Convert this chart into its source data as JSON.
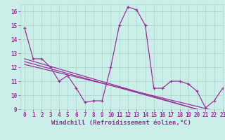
{
  "xlabel": "Windchill (Refroidissement éolien,°C)",
  "bg_color": "#cceee8",
  "grid_color": "#a8d8d0",
  "line_color": "#993399",
  "x_values": [
    0,
    1,
    2,
    3,
    4,
    5,
    6,
    7,
    8,
    9,
    10,
    11,
    12,
    13,
    14,
    15,
    16,
    17,
    18,
    19,
    20,
    21,
    22,
    23
  ],
  "main_series": [
    14.8,
    12.6,
    12.6,
    12.0,
    11.0,
    11.4,
    10.5,
    9.5,
    9.6,
    9.6,
    12.0,
    15.0,
    16.3,
    16.1,
    15.0,
    10.5,
    10.5,
    11.0,
    11.0,
    10.8,
    10.3,
    9.1,
    9.6,
    10.5
  ],
  "trend1": [
    12.6,
    12.42,
    12.24,
    12.06,
    11.88,
    11.7,
    11.52,
    11.34,
    11.16,
    10.98,
    10.8,
    10.62,
    10.44,
    10.26,
    10.08,
    9.9,
    9.72,
    9.54,
    9.36,
    9.18,
    9.0,
    8.82,
    8.64,
    8.46
  ],
  "trend2": [
    12.4,
    12.23,
    12.06,
    11.89,
    11.72,
    11.55,
    11.38,
    11.21,
    11.04,
    10.87,
    10.7,
    10.53,
    10.36,
    10.19,
    10.02,
    9.85,
    9.68,
    9.51,
    9.34,
    9.17,
    9.0,
    8.83,
    8.66,
    8.49
  ],
  "trend3": [
    12.2,
    12.05,
    11.9,
    11.75,
    11.6,
    11.45,
    11.3,
    11.15,
    11.0,
    10.85,
    10.7,
    10.55,
    10.4,
    10.25,
    10.1,
    9.95,
    9.8,
    9.65,
    9.5,
    9.35,
    9.2,
    9.05,
    8.9,
    8.75
  ],
  "ylim": [
    9,
    16.5
  ],
  "xlim": [
    -0.5,
    23
  ],
  "yticks": [
    9,
    10,
    11,
    12,
    13,
    14,
    15,
    16
  ],
  "xticks": [
    0,
    1,
    2,
    3,
    4,
    5,
    6,
    7,
    8,
    9,
    10,
    11,
    12,
    13,
    14,
    15,
    16,
    17,
    18,
    19,
    20,
    21,
    22,
    23
  ],
  "tick_fontsize": 5.5,
  "label_fontsize": 6.5
}
